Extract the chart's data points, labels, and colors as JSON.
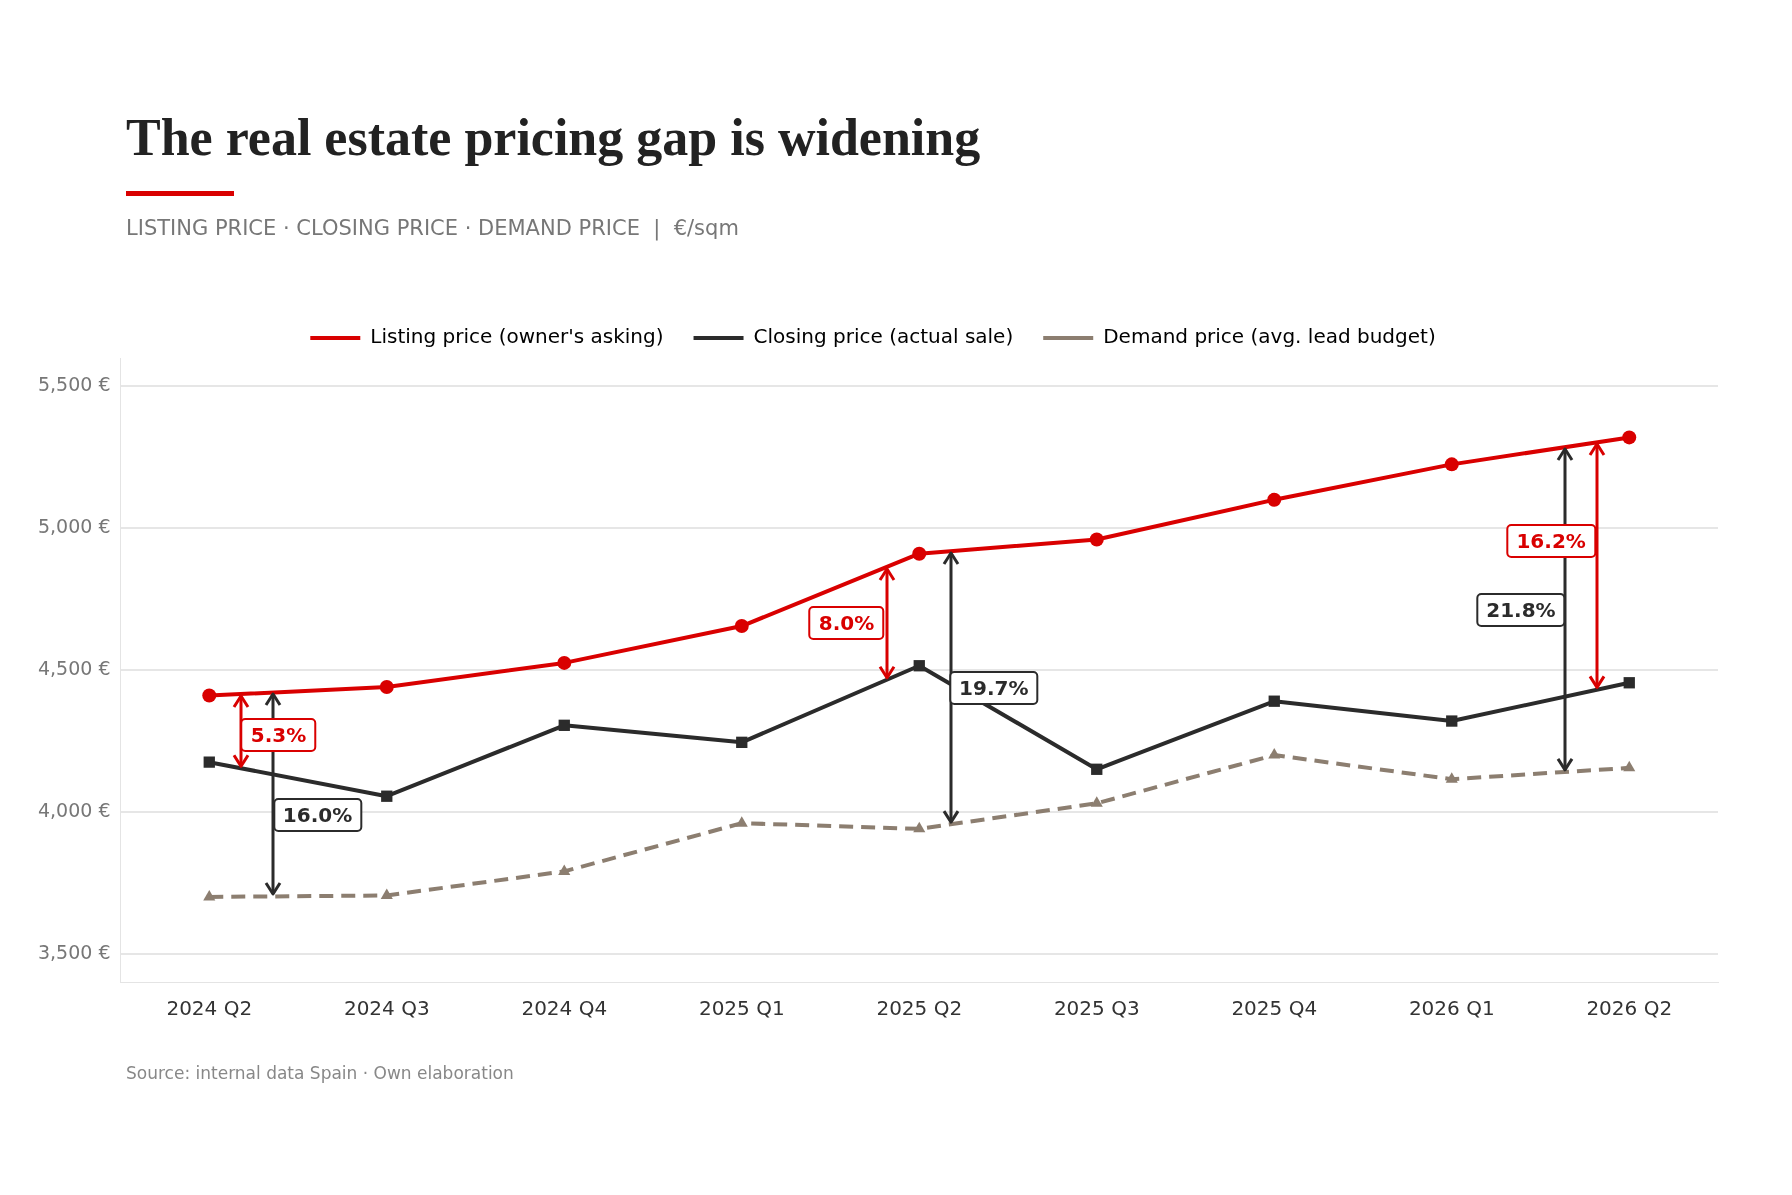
{
  "chart_data": {
    "type": "line",
    "title": "The real estate pricing gap is widening",
    "subtitle": "LISTING PRICE · CLOSING PRICE · DEMAND PRICE  |  €/sqm",
    "categories": [
      "2024 Q2",
      "2024 Q3",
      "2024 Q4",
      "2025 Q1",
      "2025 Q2",
      "2025 Q3",
      "2025 Q4",
      "2026 Q1",
      "2026 Q2"
    ],
    "series": [
      {
        "name": "Listing price (owner's asking)",
        "color": "#d90000",
        "marker": "circle",
        "line_style": "solid",
        "values": [
          4410,
          4440,
          4525,
          4655,
          4910,
          4960,
          5100,
          5225,
          5320
        ]
      },
      {
        "name": "Closing price (actual sale)",
        "color": "#2b2b2b",
        "marker": "square",
        "line_style": "solid",
        "values": [
          4175,
          4055,
          4305,
          4245,
          4515,
          4150,
          4390,
          4320,
          4455
        ]
      },
      {
        "name": "Demand price (avg. lead budget)",
        "color": "#8c7e70",
        "marker": "triangle",
        "line_style": "dashed",
        "values": [
          3700,
          3705,
          3790,
          3960,
          3940,
          4030,
          4200,
          4115,
          4155
        ]
      }
    ],
    "ylim": [
      3400,
      5600
    ],
    "yticks": [
      {
        "value": 3500,
        "label": "3,500 €"
      },
      {
        "value": 4000,
        "label": "4,000 €"
      },
      {
        "value": 4500,
        "label": "4,500 €"
      },
      {
        "value": 5000,
        "label": "5,000 €"
      },
      {
        "value": 5500,
        "label": "5,500 €"
      }
    ],
    "grid": "y",
    "legend": "top",
    "annotations": [
      "5.3%",
      "16.0%",
      "8.0%",
      "19.7%",
      "16.2%",
      "21.8%",
      "Source: internal data Spain · Own elaboration"
    ]
  }
}
